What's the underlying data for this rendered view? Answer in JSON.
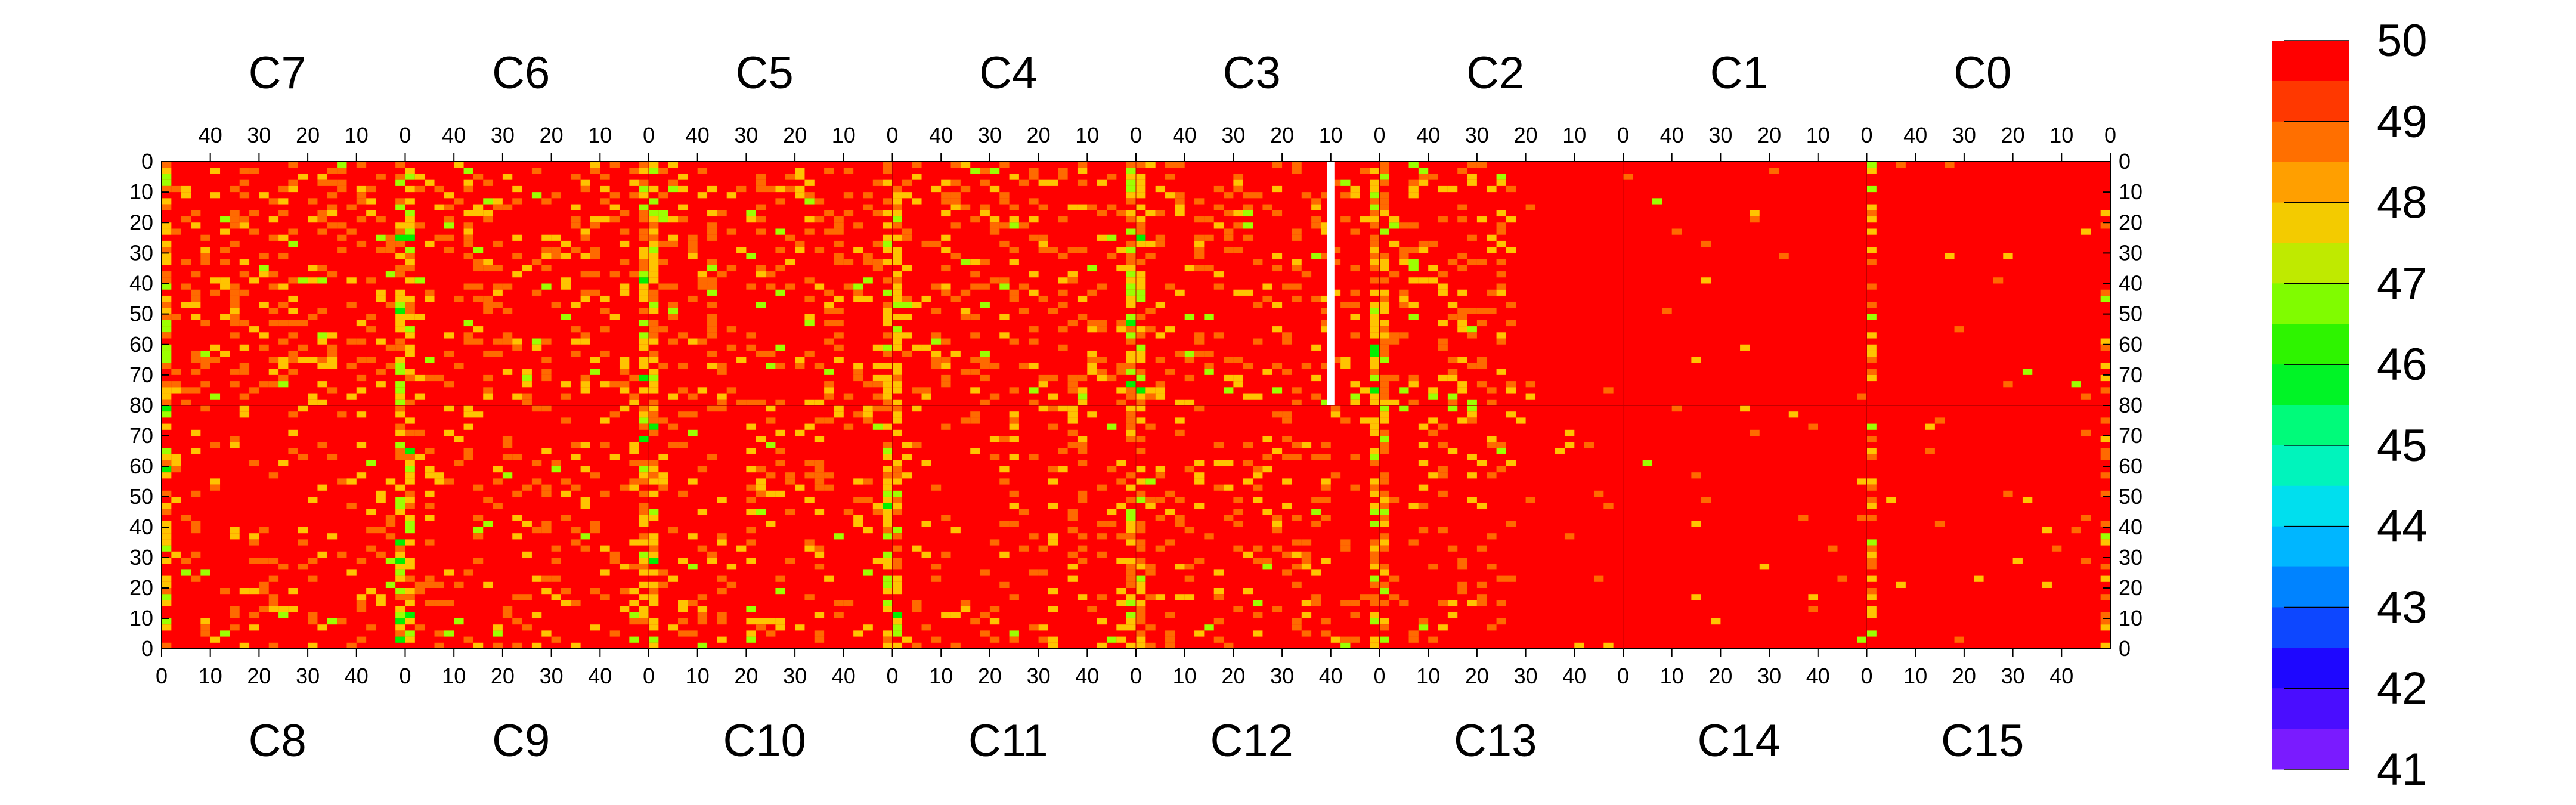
{
  "chart_data": {
    "type": "heatmap",
    "title": "",
    "xlabel": "",
    "ylabel": "",
    "panels_top": [
      "C7",
      "C6",
      "C5",
      "C4",
      "C3",
      "C2",
      "C1",
      "C0"
    ],
    "panels_bottom": [
      "C8",
      "C9",
      "C10",
      "C11",
      "C12",
      "C13",
      "C14",
      "C15"
    ],
    "x_range_per_panel": [
      0,
      50
    ],
    "top_x_ticks": [
      "40",
      "30",
      "20",
      "10",
      "0"
    ],
    "bottom_x_ticks": [
      "0",
      "10",
      "20",
      "30",
      "40"
    ],
    "y_ticks_top_half": [
      "0",
      "10",
      "20",
      "30",
      "40",
      "50",
      "60",
      "70",
      "80"
    ],
    "y_ticks_bottom_half": [
      "70",
      "60",
      "50",
      "40",
      "30",
      "20",
      "10",
      "0"
    ],
    "y_range_per_half": [
      0,
      80
    ],
    "z_range": [
      41,
      50
    ],
    "colorbar_ticks": [
      "50",
      "49",
      "48",
      "47",
      "46",
      "45",
      "44",
      "43",
      "42",
      "41"
    ],
    "dominant_value": 50,
    "noisy_columns_x": [
      0,
      50
    ],
    "dead_strip": {
      "panel": "C3",
      "x": 10,
      "y_range": [
        0,
        80
      ]
    },
    "quiet_region_panels": [
      "C2",
      "C1",
      "C0",
      "C13",
      "C14",
      "C15"
    ],
    "colors": {
      "v50": "#ff0000",
      "v49": "#ff6a00",
      "v48": "#ffc400",
      "v47": "#9cff00",
      "v46": "#00f000",
      "v45": "#00ffa0",
      "v44": "#00d8ff",
      "v43": "#0078ff",
      "v42": "#2000ff",
      "v41": "#7a1bff"
    }
  }
}
